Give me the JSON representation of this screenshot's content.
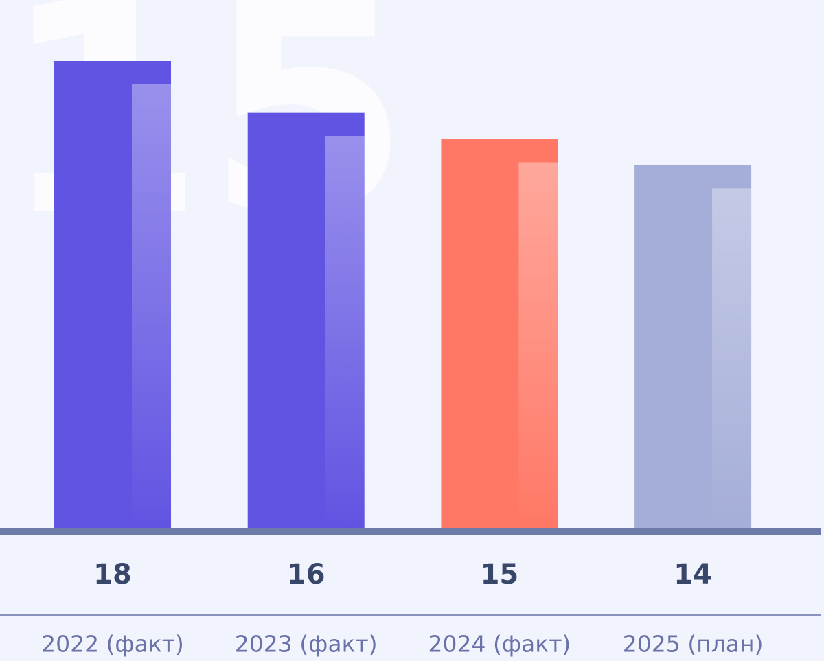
{
  "chart_data": {
    "type": "bar",
    "watermark": "15",
    "categories": [
      "2022 (факт)",
      "2023 (факт)",
      "2024 (факт)",
      "2025 (план)"
    ],
    "values": [
      18,
      16,
      15,
      14
    ],
    "colors": [
      "#6254e2",
      "#6254e2",
      "#ff7866",
      "#a5aed8"
    ]
  }
}
